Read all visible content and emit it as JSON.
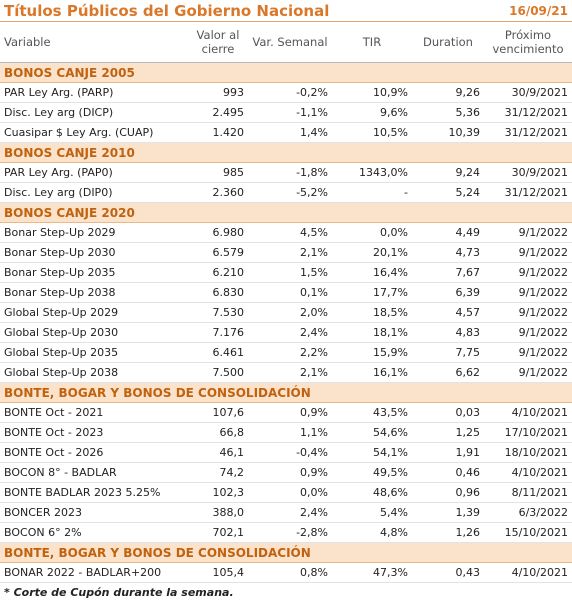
{
  "header": {
    "title": "Títulos Públicos del Gobierno Nacional",
    "date": "16/09/21"
  },
  "table": {
    "columns": [
      "Variable",
      "Valor al cierre",
      "Var. Semanal",
      "TIR",
      "Duration",
      "Próximo vencimiento"
    ],
    "sections": [
      {
        "name": "BONOS CANJE 2005",
        "rows": [
          [
            "PAR Ley Arg. (PARP)",
            "993",
            "-0,2%",
            "10,9%",
            "9,26",
            "30/9/2021"
          ],
          [
            "Disc. Ley arg (DICP)",
            "2.495",
            "-1,1%",
            "9,6%",
            "5,36",
            "31/12/2021"
          ],
          [
            "Cuasipar $ Ley Arg. (CUAP)",
            "1.420",
            "1,4%",
            "10,5%",
            "10,39",
            "31/12/2021"
          ]
        ]
      },
      {
        "name": "BONOS CANJE 2010",
        "rows": [
          [
            "PAR Ley Arg. (PAP0)",
            "985",
            "-1,8%",
            "1343,0%",
            "9,24",
            "30/9/2021"
          ],
          [
            "Disc. Ley arg (DIP0)",
            "2.360",
            "-5,2%",
            "-",
            "5,24",
            "31/12/2021"
          ]
        ]
      },
      {
        "name": "BONOS CANJE 2020",
        "rows": [
          [
            "Bonar Step-Up 2029",
            "6.980",
            "4,5%",
            "0,0%",
            "4,49",
            "9/1/2022"
          ],
          [
            "Bonar Step-Up 2030",
            "6.579",
            "2,1%",
            "20,1%",
            "4,73",
            "9/1/2022"
          ],
          [
            "Bonar Step-Up 2035",
            "6.210",
            "1,5%",
            "16,4%",
            "7,67",
            "9/1/2022"
          ],
          [
            "Bonar Step-Up 2038",
            "6.830",
            "0,1%",
            "17,7%",
            "6,39",
            "9/1/2022"
          ],
          [
            "Global Step-Up 2029",
            "7.530",
            "2,0%",
            "18,5%",
            "4,57",
            "9/1/2022"
          ],
          [
            "Global Step-Up 2030",
            "7.176",
            "2,4%",
            "18,1%",
            "4,83",
            "9/1/2022"
          ],
          [
            "Global Step-Up 2035",
            "6.461",
            "2,2%",
            "15,9%",
            "7,75",
            "9/1/2022"
          ],
          [
            "Global Step-Up 2038",
            "7.500",
            "2,1%",
            "16,1%",
            "6,62",
            "9/1/2022"
          ]
        ]
      },
      {
        "name": "BONTE, BOGAR Y BONOS DE CONSOLIDACIÓN",
        "rows": [
          [
            "BONTE Oct - 2021",
            "107,6",
            "0,9%",
            "43,5%",
            "0,03",
            "4/10/2021"
          ],
          [
            "BONTE Oct - 2023",
            "66,8",
            "1,1%",
            "54,6%",
            "1,25",
            "17/10/2021"
          ],
          [
            "BONTE Oct - 2026",
            "46,1",
            "-0,4%",
            "54,1%",
            "1,91",
            "18/10/2021"
          ],
          [
            "BOCON 8° - BADLAR",
            "74,2",
            "0,9%",
            "49,5%",
            "0,46",
            "4/10/2021"
          ],
          [
            "BONTE BADLAR 2023 5.25%",
            "102,3",
            "0,0%",
            "48,6%",
            "0,96",
            "8/11/2021"
          ],
          [
            "BONCER 2023",
            "388,0",
            "2,4%",
            "5,4%",
            "1,39",
            "6/3/2022"
          ],
          [
            "BOCON 6° 2%",
            "702,1",
            "-2,8%",
            "4,8%",
            "1,26",
            "15/10/2021"
          ]
        ]
      },
      {
        "name": "BONTE, BOGAR Y BONOS DE CONSOLIDACIÓN",
        "rows": [
          [
            "BONAR 2022 - BADLAR+200",
            "105,4",
            "0,8%",
            "47,3%",
            "0,43",
            "4/10/2021"
          ]
        ]
      }
    ]
  },
  "footnote": "* Corte de Cupón durante la semana."
}
